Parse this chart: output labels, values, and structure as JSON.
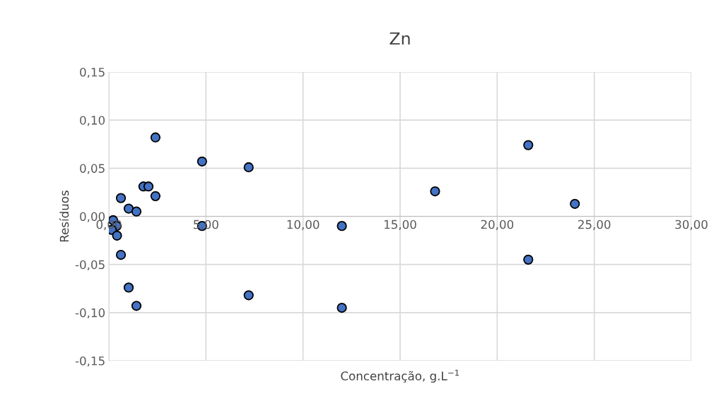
{
  "chart_data": {
    "type": "scatter",
    "title": "Zn",
    "xlabel": "Concentração, g.L$^{−1}$",
    "ylabel": "Resíduos",
    "series": [
      {
        "color": "#4472c4",
        "x": [
          2.4,
          4.8,
          7.2,
          21.6,
          16.8,
          24.0,
          1.78,
          2.04,
          2.4,
          0.62,
          1.02,
          1.42,
          0.22,
          0.4,
          0.15,
          0.42,
          4.8,
          12.0,
          0.62,
          21.6,
          1.02,
          7.2,
          1.42,
          12.0
        ],
        "values": [
          0.082,
          0.057,
          0.051,
          0.074,
          0.026,
          0.013,
          0.031,
          0.031,
          0.021,
          0.019,
          0.008,
          0.005,
          -0.004,
          -0.01,
          -0.014,
          -0.02,
          -0.01,
          -0.01,
          -0.04,
          -0.045,
          -0.074,
          -0.082,
          -0.093,
          -0.095
        ]
      }
    ],
    "marker": "circle",
    "grid": true,
    "xlim": [
      0,
      30
    ],
    "xticks": [
      {
        "value": 0,
        "label": "0,00"
      },
      {
        "value": 5,
        "label": "5,00"
      },
      {
        "value": 10,
        "label": "10,00"
      },
      {
        "value": 15,
        "label": "15,00"
      },
      {
        "value": 20,
        "label": "20,00"
      },
      {
        "value": 25,
        "label": "25,00"
      },
      {
        "value": 30,
        "label": "30,00"
      }
    ],
    "ylim": [
      -0.15,
      0.15
    ],
    "yticks": [
      {
        "value": -0.15,
        "label": "-0,15"
      },
      {
        "value": -0.1,
        "label": "-0,10"
      },
      {
        "value": -0.05,
        "label": "-0,05"
      },
      {
        "value": 0,
        "label": "0,00"
      },
      {
        "value": 0.05,
        "label": "0,05"
      },
      {
        "value": 0.1,
        "label": "0,10"
      },
      {
        "value": 0.15,
        "label": "0,15"
      }
    ]
  }
}
